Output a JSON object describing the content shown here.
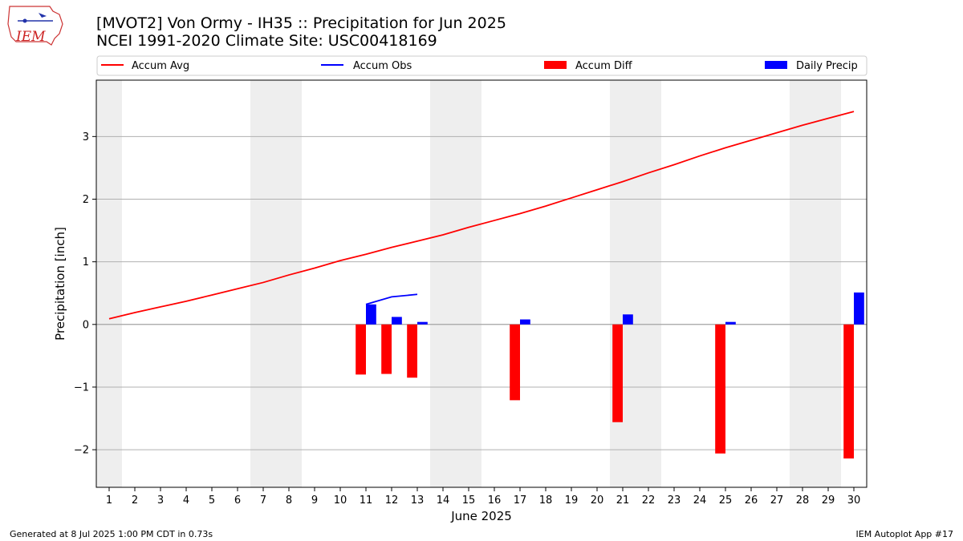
{
  "header": {
    "title_line1": "[MVOT2] Von Ormy - IH35 :: Precipitation for Jun 2025",
    "title_line2": "NCEI 1991-2020 Climate Site: USC00418169"
  },
  "logo": {
    "text": "IEM",
    "color": "#cc2222"
  },
  "footer": {
    "left": "Generated at 8 Jul 2025 1:00 PM CDT in 0.73s",
    "right": "IEM Autoplot App #17"
  },
  "chart_data": {
    "type": "bar",
    "xlabel": "June 2025",
    "ylabel": "Precipitation [inch]",
    "xlim": [
      0.5,
      30.5
    ],
    "ylim": [
      -2.6,
      3.9
    ],
    "yticks": [
      -2,
      -1,
      0,
      1,
      2,
      3
    ],
    "days": [
      1,
      2,
      3,
      4,
      5,
      6,
      7,
      8,
      9,
      10,
      11,
      12,
      13,
      14,
      15,
      16,
      17,
      18,
      19,
      20,
      21,
      22,
      23,
      24,
      25,
      26,
      27,
      28,
      29,
      30
    ],
    "weekend_spans": [
      [
        0.5,
        1.5
      ],
      [
        6.5,
        8.5
      ],
      [
        13.5,
        15.5
      ],
      [
        20.5,
        22.5
      ],
      [
        27.5,
        29.5
      ]
    ],
    "grid": "y",
    "legend": {
      "placement": "top",
      "entries": [
        {
          "label": "Accum Avg",
          "kind": "line",
          "color": "#ff0000"
        },
        {
          "label": "Accum Obs",
          "kind": "line",
          "color": "#0000ff"
        },
        {
          "label": "Accum Diff",
          "kind": "bar",
          "color": "#ff0000"
        },
        {
          "label": "Daily Precip",
          "kind": "bar",
          "color": "#0000ff"
        }
      ]
    },
    "series": [
      {
        "name": "Accum Avg",
        "type": "line",
        "color": "#ff0000",
        "x": [
          1,
          2,
          3,
          4,
          5,
          6,
          7,
          8,
          9,
          10,
          11,
          12,
          13,
          14,
          15,
          16,
          17,
          18,
          19,
          20,
          21,
          22,
          23,
          24,
          25,
          26,
          27,
          28,
          29,
          30
        ],
        "values": [
          0.09,
          0.19,
          0.28,
          0.37,
          0.47,
          0.57,
          0.67,
          0.79,
          0.9,
          1.02,
          1.12,
          1.23,
          1.33,
          1.43,
          1.55,
          1.66,
          1.77,
          1.89,
          2.02,
          2.15,
          2.28,
          2.42,
          2.55,
          2.69,
          2.82,
          2.94,
          3.06,
          3.18,
          3.29,
          3.4
        ]
      },
      {
        "name": "Accum Obs",
        "type": "line",
        "color": "#0000ff",
        "x": [
          11,
          12,
          13
        ],
        "values": [
          0.32,
          0.44,
          0.48
        ]
      },
      {
        "name": "Accum Diff",
        "type": "bar",
        "color": "#ff0000",
        "x": [
          11,
          12,
          13,
          17,
          21,
          25,
          30
        ],
        "values": [
          -0.8,
          -0.79,
          -0.85,
          -1.21,
          -1.56,
          -2.06,
          -2.14
        ]
      },
      {
        "name": "Daily Precip",
        "type": "bar",
        "color": "#0000ff",
        "x": [
          11,
          12,
          13,
          17,
          21,
          25,
          30
        ],
        "values": [
          0.32,
          0.12,
          0.04,
          0.08,
          0.16,
          0.04,
          0.51
        ]
      }
    ]
  }
}
